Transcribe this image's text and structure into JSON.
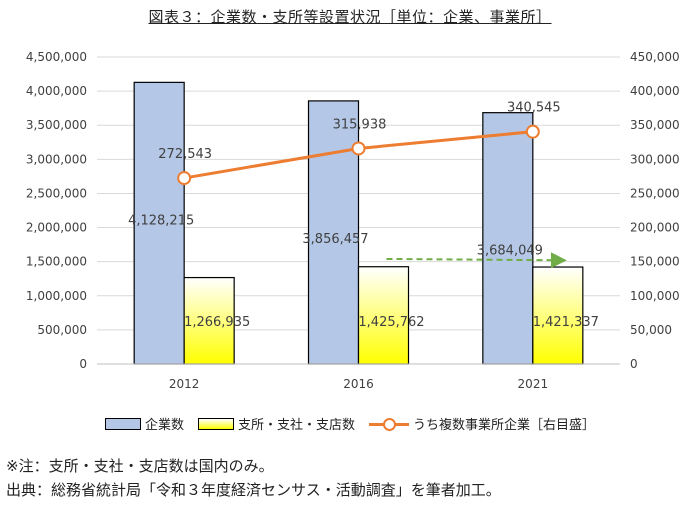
{
  "chart_data": {
    "type": "bar",
    "title": "図表３：企業数・支所等設置状況［単位：企業、事業所］",
    "categories": [
      "2012",
      "2016",
      "2021"
    ],
    "series": [
      {
        "name": "企業数",
        "kind": "bar",
        "axis": "left",
        "color": "#b4c7e7",
        "values": [
          4128215,
          3856457,
          3684049
        ],
        "labels": [
          "4,128,215",
          "3,856,457",
          "3,684,049"
        ]
      },
      {
        "name": "支所・支社・支店数",
        "kind": "bar",
        "axis": "left",
        "color": "#ffff00",
        "values": [
          1266935,
          1425762,
          1421337
        ],
        "labels": [
          "1,266,935",
          "1,425,762",
          "1,421,337"
        ]
      },
      {
        "name": "うち複数事業所企業［右目盛］",
        "kind": "line",
        "axis": "right",
        "color": "#ed7d31",
        "values": [
          272543,
          315938,
          340545
        ],
        "labels": [
          "272,543",
          "315,938",
          "340,545"
        ]
      }
    ],
    "y_left": {
      "min": 0,
      "max": 4500000,
      "ticks": [
        "0",
        "500,000",
        "1,000,000",
        "1,500,000",
        "2,000,000",
        "2,500,000",
        "3,000,000",
        "3,500,000",
        "4,000,000",
        "4,500,000"
      ]
    },
    "y_right": {
      "min": 0,
      "max": 450000,
      "ticks": [
        "0",
        "50,000",
        "100,000",
        "150,000",
        "200,000",
        "250,000",
        "300,000",
        "350,000",
        "400,000",
        "450,000"
      ]
    },
    "grid": true,
    "legend_position": "bottom",
    "annotation": {
      "type": "dashed-arrow",
      "color": "#70ad47",
      "from": {
        "x": "2016",
        "y": 1540000
      },
      "to": {
        "x": "2021",
        "y": 1520000
      }
    }
  },
  "notes": {
    "note1": "※注：支所・支社・支店数は国内のみ。",
    "note2": "出典：総務省統計局「令和３年度経済センサス・活動調査」を筆者加工。"
  }
}
